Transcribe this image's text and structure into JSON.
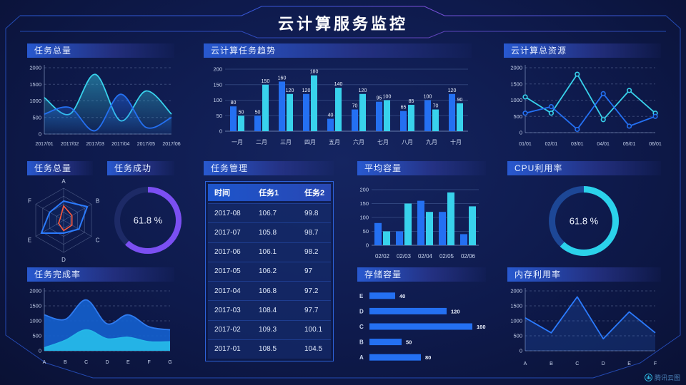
{
  "header": {
    "title": "云计算服务监控"
  },
  "watermark": {
    "label": "腾讯云图"
  },
  "panels": {
    "task_total_trend": {
      "title": "任务总量"
    },
    "cloud_task_trend": {
      "title": "云计算任务趋势"
    },
    "cloud_total_resources": {
      "title": "云计算总资源"
    },
    "task_total_radar": {
      "title": "任务总量"
    },
    "task_success": {
      "title": "任务成功"
    },
    "task_management": {
      "title": "任务管理"
    },
    "avg_capacity": {
      "title": "平均容量"
    },
    "cpu_usage": {
      "title": "CPU利用率"
    },
    "task_completion": {
      "title": "任务完成率"
    },
    "storage_capacity": {
      "title": "存储容量"
    },
    "memory_usage": {
      "title": "内存利用率"
    }
  },
  "colors": {
    "blue": "#2470f2",
    "cyan": "#38d2ec",
    "purple": "#7b4ff2",
    "frame": "#2a58d0"
  },
  "chart_data": {
    "task_total_area": {
      "type": "xy",
      "title": "任务总量",
      "smoothed": true,
      "grid": "dashed",
      "x": [
        "2017/01",
        "2017/02",
        "2017/03",
        "2017/04",
        "2017/05",
        "2017/06"
      ],
      "ymax": 2000,
      "yticks": [
        0,
        500,
        1000,
        1500,
        2000
      ],
      "series": [
        {
          "name": "cyan",
          "color": "#38d2ec",
          "smooth": true,
          "area": true,
          "values": [
            1100,
            600,
            1800,
            400,
            1300,
            600
          ]
        },
        {
          "name": "blue",
          "color": "#2470f2",
          "smooth": true,
          "area": true,
          "values": [
            600,
            800,
            100,
            1200,
            200,
            500
          ]
        }
      ]
    },
    "cloud_task_trend": {
      "type": "bar",
      "title": "云计算任务趋势",
      "show_values": true,
      "categories": [
        "一月",
        "二月",
        "三月",
        "四月",
        "五月",
        "六月",
        "七月",
        "八月",
        "九月",
        "十月"
      ],
      "ymax": 200,
      "yticks": [
        0,
        50,
        100,
        150,
        200
      ],
      "series": [
        {
          "name": "blue",
          "color": "#2470f2",
          "values": [
            80,
            50,
            160,
            120,
            40,
            70,
            95,
            65,
            100,
            120
          ]
        },
        {
          "name": "cyan",
          "color": "#38d2ec",
          "values": [
            50,
            150,
            120,
            180,
            140,
            120,
            100,
            85,
            70,
            90
          ]
        }
      ]
    },
    "cloud_total_resources": {
      "type": "xy",
      "title": "云计算总资源",
      "grid": "dashed",
      "x": [
        "01/01",
        "02/01",
        "03/01",
        "04/01",
        "05/01",
        "06/01"
      ],
      "ymax": 2000,
      "yticks": [
        0,
        500,
        1000,
        1500,
        2000
      ],
      "series": [
        {
          "name": "cyan",
          "color": "#38d2ec",
          "markers": true,
          "values": [
            1100,
            600,
            1800,
            400,
            1300,
            600
          ]
        },
        {
          "name": "blue",
          "color": "#2470f2",
          "markers": true,
          "values": [
            600,
            800,
            100,
            1200,
            200,
            500
          ]
        }
      ]
    },
    "task_total_radar": {
      "type": "radar",
      "title": "任务总量",
      "axes": [
        "A",
        "B",
        "C",
        "D",
        "E",
        "F"
      ],
      "max": 100,
      "series": [
        {
          "name": "blue",
          "color": "#2b7bff",
          "values": [
            60,
            85,
            55,
            40,
            80,
            50
          ]
        },
        {
          "name": "orange",
          "color": "#ff5a3c",
          "values": [
            45,
            30,
            30,
            32,
            18,
            12
          ]
        }
      ]
    },
    "task_success_gauge": {
      "type": "donut",
      "title": "任务成功",
      "value": 61.8,
      "text": "61.8 %",
      "color": "#7b4ff2",
      "track": "#1d2a66",
      "width": 8
    },
    "task_table": {
      "type": "table",
      "title": "任务管理",
      "headers": [
        "时间",
        "任务1",
        "任务2"
      ],
      "rows": [
        [
          "2017-08",
          "106.7",
          "99.8"
        ],
        [
          "2017-07",
          "105.8",
          "98.7"
        ],
        [
          "2017-06",
          "106.1",
          "98.2"
        ],
        [
          "2017-05",
          "106.2",
          "97"
        ],
        [
          "2017-04",
          "106.8",
          "97.2"
        ],
        [
          "2017-03",
          "108.4",
          "97.7"
        ],
        [
          "2017-02",
          "109.3",
          "100.1"
        ],
        [
          "2017-01",
          "108.5",
          "104.5"
        ]
      ]
    },
    "avg_capacity": {
      "type": "bar",
      "title": "平均容量",
      "show_values": false,
      "categories": [
        "02/02",
        "02/03",
        "02/04",
        "02/05",
        "02/06"
      ],
      "ymax": 200,
      "yticks": [
        0,
        50,
        100,
        150,
        200
      ],
      "series": [
        {
          "name": "blue",
          "color": "#2470f2",
          "values": [
            80,
            50,
            160,
            120,
            40
          ]
        },
        {
          "name": "cyan",
          "color": "#38d2ec",
          "values": [
            50,
            150,
            120,
            190,
            140
          ]
        }
      ]
    },
    "cpu_gauge": {
      "type": "donut",
      "title": "CPU利用率",
      "value": 61.8,
      "text": "61.8 %",
      "color": "#2bd2ea",
      "track": "#1d4796",
      "width": 9
    },
    "task_completion": {
      "type": "xy",
      "title": "任务完成率",
      "grid": "dashed",
      "x": [
        "A",
        "B",
        "C",
        "D",
        "E",
        "F",
        "G"
      ],
      "ymax": 2000,
      "yticks": [
        0,
        500,
        1000,
        1500,
        2000
      ],
      "series": [
        {
          "name": "blue",
          "color": "#1460cf",
          "line": "#2f7bf0",
          "smooth": true,
          "area": true,
          "areaOpacity": 0.9,
          "values": [
            1200,
            1050,
            1700,
            900,
            1200,
            800,
            700
          ]
        },
        {
          "name": "cyan",
          "color": "#25b8e8",
          "smooth": true,
          "area": true,
          "areaOpacity": 0.95,
          "values": [
            100,
            350,
            700,
            400,
            450,
            300,
            300
          ]
        }
      ]
    },
    "storage_capacity": {
      "type": "hbar",
      "title": "存储容量",
      "color": "#2470f2",
      "categories": [
        "E",
        "D",
        "C",
        "B",
        "A"
      ],
      "values": [
        40,
        120,
        160,
        50,
        80
      ]
    },
    "memory_usage": {
      "type": "xy",
      "title": "内存利用率",
      "grid": "dashed",
      "x": [
        "A",
        "B",
        "C",
        "D",
        "E",
        "F"
      ],
      "ymax": 2000,
      "yticks": [
        0,
        500,
        1000,
        1500,
        2000
      ],
      "series": [
        {
          "name": "blue",
          "color": "#2b7bff",
          "area": true,
          "areaOpacity": 0.18,
          "values": [
            1100,
            600,
            1800,
            400,
            1300,
            600
          ]
        }
      ]
    }
  }
}
